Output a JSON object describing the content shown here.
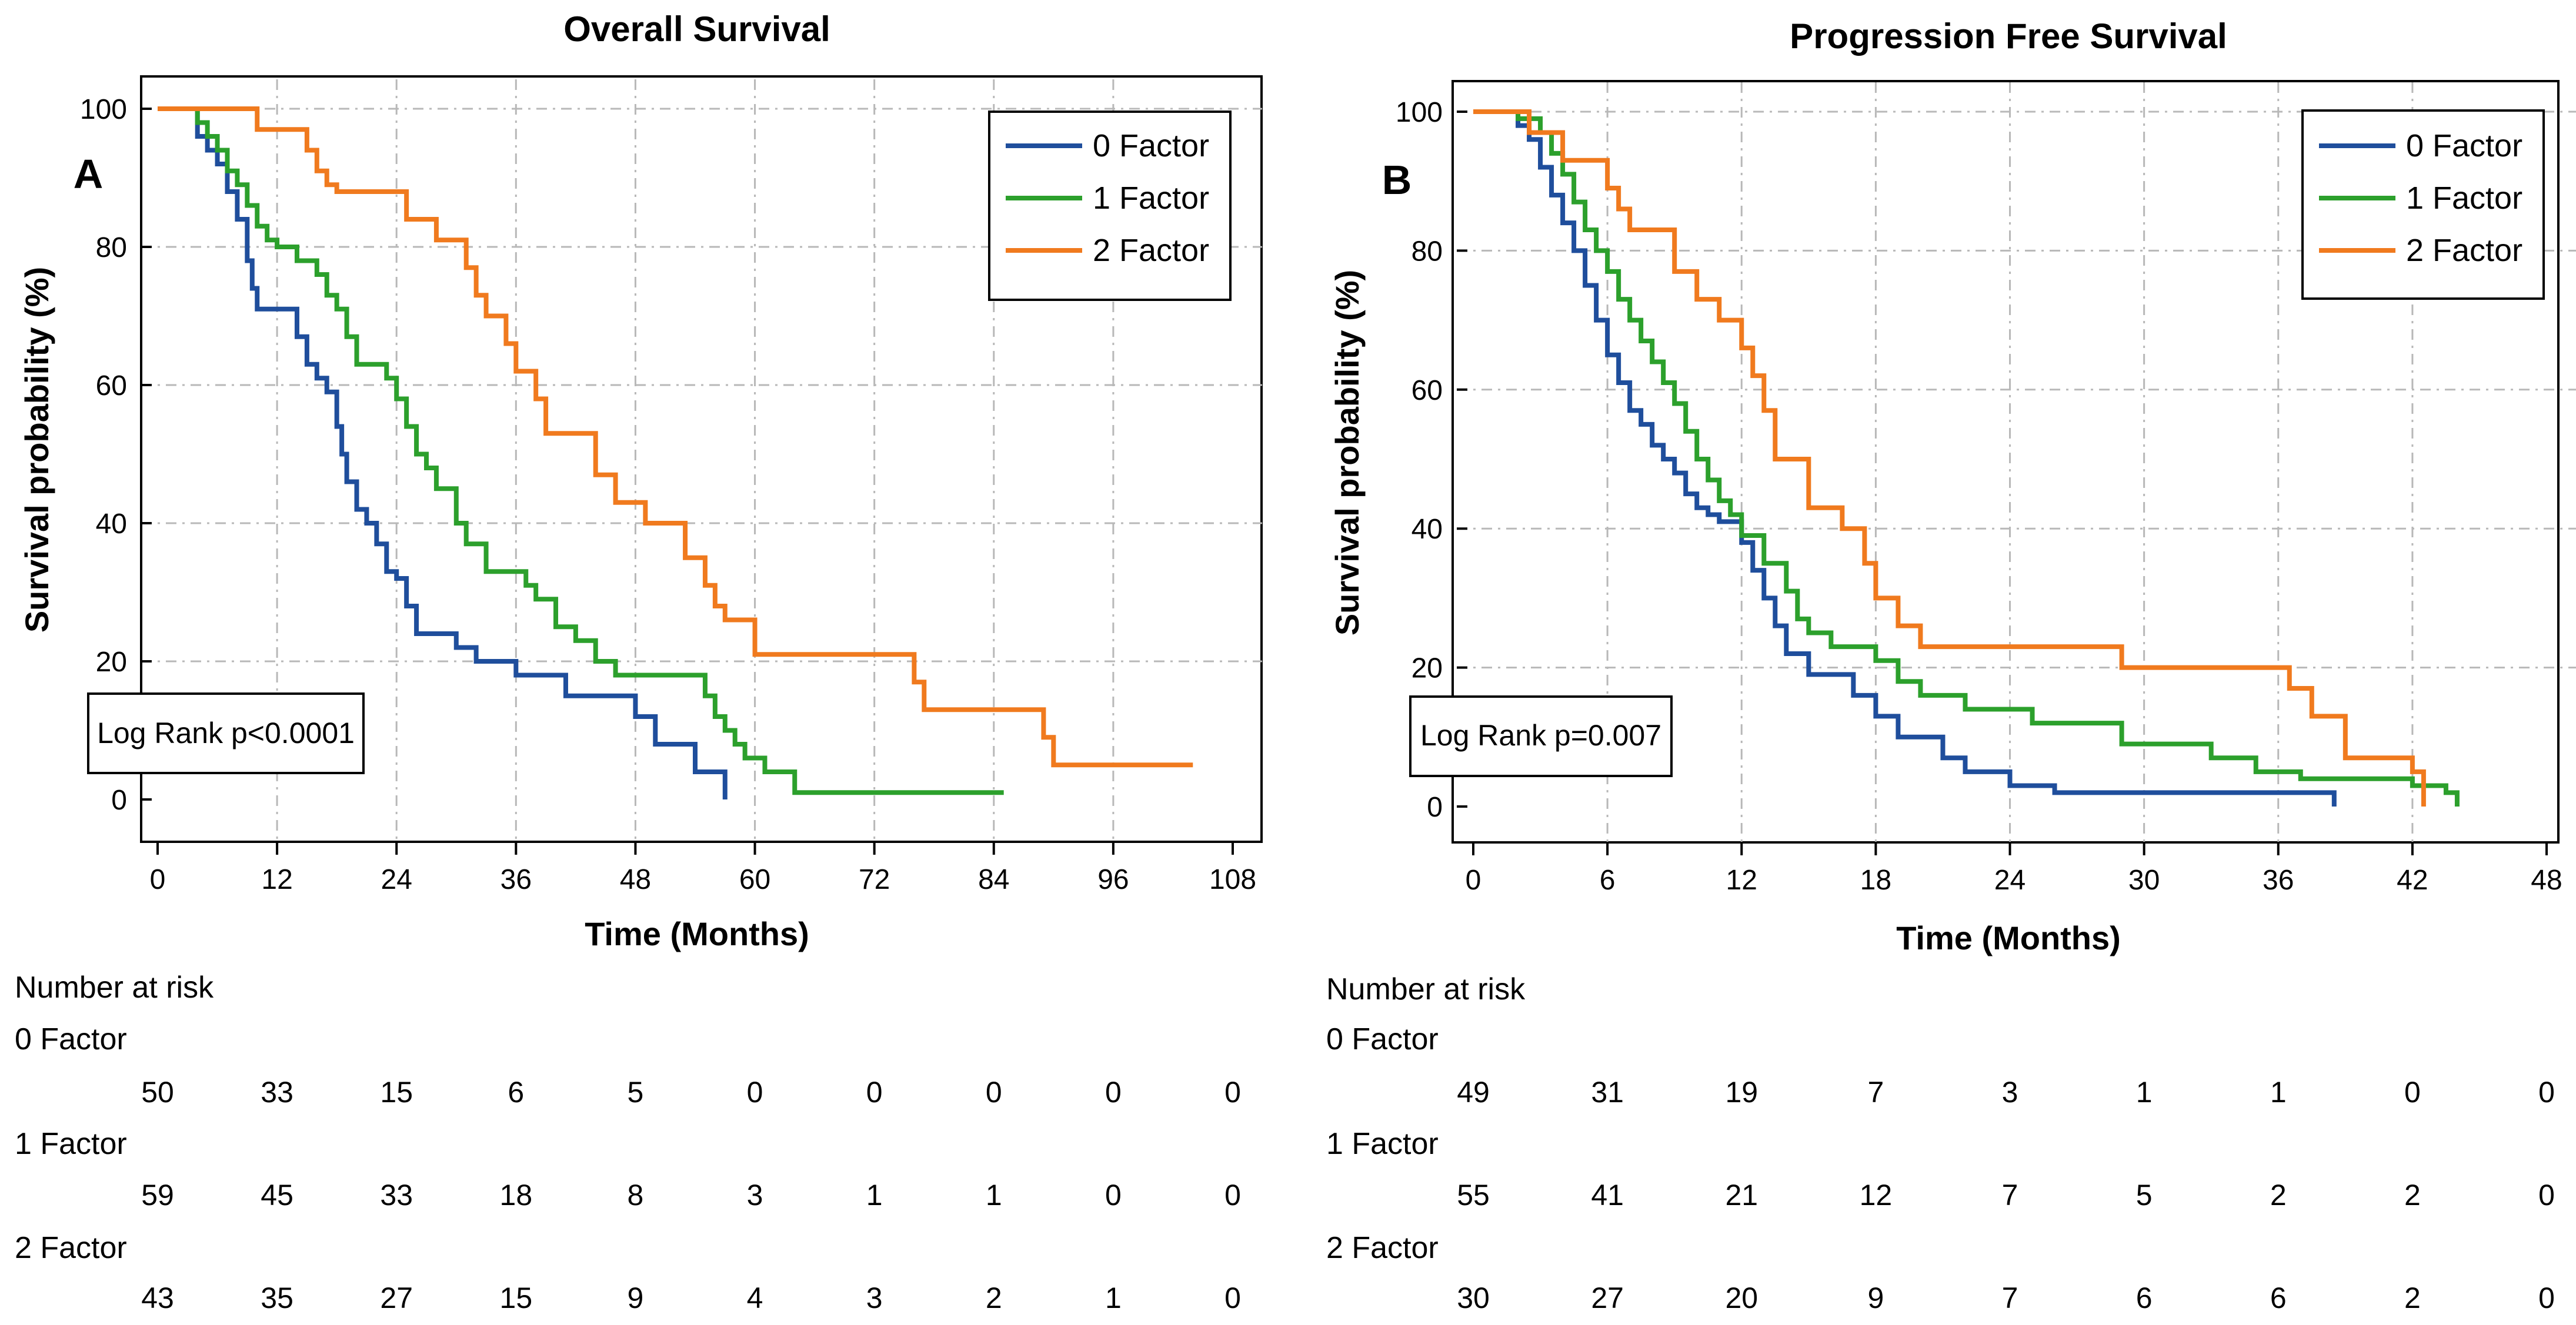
{
  "chart_data": [
    {
      "type": "line",
      "panel_label": "A",
      "title": "Overall Survival",
      "xlabel": "Time (Months)",
      "ylabel": "Survival probability (%)",
      "xlim": [
        0,
        108
      ],
      "ylim": [
        0,
        100
      ],
      "xticks": [
        0,
        12,
        24,
        36,
        48,
        60,
        72,
        84,
        96,
        108
      ],
      "yticks": [
        0,
        20,
        40,
        60,
        80,
        100
      ],
      "grid": true,
      "legend_position": "top-right",
      "annotation": "Log Rank  p<0.0001",
      "series": [
        {
          "name": "0 Factor",
          "color": "#1f4e9c",
          "x": [
            0,
            4,
            5,
            6,
            7,
            8,
            9,
            9.5,
            10,
            11,
            14,
            15,
            16,
            17,
            18,
            18.5,
            19,
            20,
            21,
            22,
            23,
            24,
            25,
            26,
            30,
            32,
            36,
            41,
            48,
            50,
            51,
            54,
            57
          ],
          "y": [
            100,
            96,
            94,
            92,
            88,
            84,
            78,
            74,
            71,
            71,
            67,
            63,
            61,
            59,
            54,
            50,
            46,
            42,
            40,
            37,
            33,
            32,
            28,
            24,
            22,
            20,
            18,
            15,
            12,
            8,
            8,
            4,
            0
          ]
        },
        {
          "name": "1 Factor",
          "color": "#2ca02c",
          "x": [
            0,
            4,
            5,
            6,
            7,
            8,
            9,
            10,
            11,
            12,
            14,
            16,
            17,
            18,
            19,
            20,
            23,
            24,
            25,
            26,
            27,
            28,
            30,
            31,
            33,
            37,
            38,
            40,
            42,
            44,
            46,
            50,
            55,
            56,
            57,
            58,
            59,
            61,
            62,
            64,
            85
          ],
          "y": [
            100,
            98,
            96,
            94,
            91,
            89,
            86,
            83,
            81,
            80,
            78,
            76,
            73,
            71,
            67,
            63,
            61,
            58,
            54,
            50,
            48,
            45,
            40,
            37,
            33,
            31,
            29,
            25,
            23,
            20,
            18,
            18,
            15,
            12,
            10,
            8,
            6,
            4,
            4,
            1,
            1
          ]
        },
        {
          "name": "2 Factor",
          "color": "#f07a1e",
          "x": [
            0,
            9,
            10,
            14,
            15,
            16,
            17,
            18,
            25,
            28,
            31,
            32,
            33,
            35,
            36,
            38,
            39,
            44,
            46,
            49,
            53,
            55,
            56,
            57,
            60,
            76,
            77,
            89,
            90,
            104
          ],
          "y": [
            100,
            100,
            97,
            97,
            94,
            91,
            89,
            88,
            84,
            81,
            77,
            73,
            70,
            66,
            62,
            58,
            53,
            47,
            43,
            40,
            35,
            31,
            28,
            26,
            21,
            17,
            13,
            9,
            5,
            5
          ]
        }
      ],
      "risk_table": {
        "title": "Number at risk",
        "times": [
          0,
          12,
          24,
          36,
          48,
          60,
          72,
          84,
          96,
          108
        ],
        "rows": [
          {
            "label": "0 Factor",
            "values": [
              "50",
              "33",
              "15",
              "6",
              "5",
              "0",
              "0",
              "0",
              "0",
              "0"
            ]
          },
          {
            "label": "1 Factor",
            "values": [
              "59",
              "45",
              "33",
              "18",
              "8",
              "3",
              "1",
              "1",
              "0",
              "0"
            ]
          },
          {
            "label": "2 Factor",
            "values": [
              "43",
              "35",
              "27",
              "15",
              "9",
              "4",
              "3",
              "2",
              "1",
              "0"
            ]
          }
        ]
      }
    },
    {
      "type": "line",
      "panel_label": "B",
      "title": "Progression Free Survival",
      "xlabel": "Time (Months)",
      "ylabel": "Survival probability (%)",
      "xlim": [
        0,
        48
      ],
      "ylim": [
        0,
        100
      ],
      "xticks": [
        0,
        6,
        12,
        18,
        24,
        30,
        36,
        42,
        48
      ],
      "yticks": [
        0,
        20,
        40,
        60,
        80,
        100
      ],
      "grid": true,
      "legend_position": "top-right",
      "annotation": "Log Rank  p=0.007",
      "series": [
        {
          "name": "0 Factor",
          "color": "#1f4e9c",
          "x": [
            0,
            2,
            2.5,
            3,
            3.5,
            4,
            4.5,
            5,
            5.5,
            6,
            6.5,
            7,
            7.5,
            8,
            8.5,
            9,
            9.5,
            10,
            10.5,
            11,
            12,
            12.5,
            13,
            13.5,
            14,
            15,
            17,
            18,
            19,
            21,
            22,
            24,
            26,
            30,
            38.5
          ],
          "y": [
            100,
            98,
            96,
            92,
            88,
            84,
            80,
            75,
            70,
            65,
            61,
            57,
            55,
            52,
            50,
            48,
            45,
            43,
            42,
            41,
            38,
            34,
            30,
            26,
            22,
            19,
            16,
            13,
            10,
            7,
            5,
            3,
            2,
            2,
            0
          ]
        },
        {
          "name": "1 Factor",
          "color": "#2ca02c",
          "x": [
            0,
            2,
            3,
            3.5,
            4,
            4.5,
            5,
            5.5,
            6,
            6.5,
            7,
            7.5,
            8,
            8.5,
            9,
            9.5,
            10,
            10.5,
            11,
            11.5,
            12,
            13,
            14,
            14.5,
            15,
            16,
            18,
            19,
            20,
            22,
            25,
            29,
            33,
            35,
            37,
            42,
            43.5,
            44
          ],
          "y": [
            100,
            99,
            97,
            94,
            91,
            87,
            83,
            80,
            77,
            73,
            70,
            67,
            64,
            61,
            58,
            54,
            50,
            47,
            44,
            42,
            39,
            35,
            31,
            27,
            25,
            23,
            21,
            18,
            16,
            14,
            12,
            9,
            7,
            5,
            4,
            3,
            2,
            0
          ]
        },
        {
          "name": "2 Factor",
          "color": "#f07a1e",
          "x": [
            0,
            2.5,
            4,
            6,
            6.5,
            7,
            9,
            10,
            11,
            12,
            12.5,
            13,
            13.5,
            15,
            16.5,
            17.5,
            18,
            19,
            20,
            29,
            36.5,
            37.5,
            39,
            42,
            42.5
          ],
          "y": [
            100,
            97,
            93,
            89,
            86,
            83,
            77,
            73,
            70,
            66,
            62,
            57,
            50,
            43,
            40,
            35,
            30,
            26,
            23,
            20,
            17,
            13,
            7,
            5,
            0
          ]
        }
      ],
      "risk_table": {
        "title": "Number at risk",
        "times": [
          0,
          6,
          12,
          18,
          24,
          30,
          36,
          42,
          48
        ],
        "rows": [
          {
            "label": "0 Factor",
            "values": [
              "49",
              "31",
              "19",
              "7",
              "3",
              "1",
              "1",
              "0",
              "0"
            ]
          },
          {
            "label": "1 Factor",
            "values": [
              "55",
              "41",
              "21",
              "12",
              "7",
              "5",
              "2",
              "2",
              "0"
            ]
          },
          {
            "label": "2 Factor",
            "values": [
              "30",
              "27",
              "20",
              "9",
              "7",
              "6",
              "6",
              "2",
              "0"
            ]
          }
        ]
      }
    }
  ]
}
